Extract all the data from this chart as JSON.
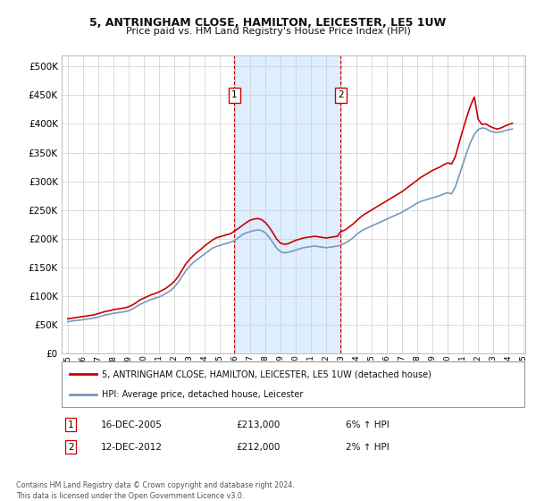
{
  "title_line1": "5, ANTRINGHAM CLOSE, HAMILTON, LEICESTER, LE5 1UW",
  "title_line2": "Price paid vs. HM Land Registry's House Price Index (HPI)",
  "background_color": "#ffffff",
  "plot_bg_color": "#ffffff",
  "grid_color": "#cccccc",
  "red_line_color": "#cc0000",
  "blue_line_color": "#7799bb",
  "highlight_bg_color": "#ddeeff",
  "sale1_date_num": 2005.96,
  "sale2_date_num": 2012.95,
  "sale1_price": 213000,
  "sale2_price": 212000,
  "legend_entry1": "5, ANTRINGHAM CLOSE, HAMILTON, LEICESTER, LE5 1UW (detached house)",
  "legend_entry2": "HPI: Average price, detached house, Leicester",
  "table_row1": [
    "1",
    "16-DEC-2005",
    "£213,000",
    "6% ↑ HPI"
  ],
  "table_row2": [
    "2",
    "12-DEC-2012",
    "£212,000",
    "2% ↑ HPI"
  ],
  "footnote": "Contains HM Land Registry data © Crown copyright and database right 2024.\nThis data is licensed under the Open Government Licence v3.0.",
  "ylim_min": 0,
  "ylim_max": 520000,
  "yticks": [
    0,
    50000,
    100000,
    150000,
    200000,
    250000,
    300000,
    350000,
    400000,
    450000,
    500000
  ],
  "ytick_labels": [
    "£0",
    "£50K",
    "£100K",
    "£150K",
    "£200K",
    "£250K",
    "£300K",
    "£350K",
    "£400K",
    "£450K",
    "£500K"
  ],
  "hpi_dates": [
    1995.0,
    1995.25,
    1995.5,
    1995.75,
    1996.0,
    1996.25,
    1996.5,
    1996.75,
    1997.0,
    1997.25,
    1997.5,
    1997.75,
    1998.0,
    1998.25,
    1998.5,
    1998.75,
    1999.0,
    1999.25,
    1999.5,
    1999.75,
    2000.0,
    2000.25,
    2000.5,
    2000.75,
    2001.0,
    2001.25,
    2001.5,
    2001.75,
    2002.0,
    2002.25,
    2002.5,
    2002.75,
    2003.0,
    2003.25,
    2003.5,
    2003.75,
    2004.0,
    2004.25,
    2004.5,
    2004.75,
    2005.0,
    2005.25,
    2005.5,
    2005.75,
    2006.0,
    2006.25,
    2006.5,
    2006.75,
    2007.0,
    2007.25,
    2007.5,
    2007.75,
    2008.0,
    2008.25,
    2008.5,
    2008.75,
    2009.0,
    2009.25,
    2009.5,
    2009.75,
    2010.0,
    2010.25,
    2010.5,
    2010.75,
    2011.0,
    2011.25,
    2011.5,
    2011.75,
    2012.0,
    2012.25,
    2012.5,
    2012.75,
    2013.0,
    2013.25,
    2013.5,
    2013.75,
    2014.0,
    2014.25,
    2014.5,
    2014.75,
    2015.0,
    2015.25,
    2015.5,
    2015.75,
    2016.0,
    2016.25,
    2016.5,
    2016.75,
    2017.0,
    2017.25,
    2017.5,
    2017.75,
    2018.0,
    2018.25,
    2018.5,
    2018.75,
    2019.0,
    2019.25,
    2019.5,
    2019.75,
    2020.0,
    2020.25,
    2020.5,
    2020.75,
    2021.0,
    2021.25,
    2021.5,
    2021.75,
    2022.0,
    2022.25,
    2022.5,
    2022.75,
    2023.0,
    2023.25,
    2023.5,
    2023.75,
    2024.0,
    2024.25
  ],
  "hpi_values": [
    55000,
    56000,
    57000,
    57500,
    58500,
    59500,
    60500,
    61500,
    63000,
    65000,
    67000,
    68000,
    69500,
    70500,
    71500,
    72500,
    74000,
    77000,
    81000,
    85000,
    88000,
    91000,
    94000,
    96000,
    98000,
    101000,
    105000,
    109000,
    115000,
    123000,
    133000,
    143000,
    151000,
    158000,
    163000,
    168000,
    173000,
    178000,
    183000,
    186000,
    188000,
    190000,
    192000,
    194000,
    197000,
    202000,
    207000,
    210000,
    212000,
    214000,
    215000,
    214000,
    210000,
    202000,
    193000,
    183000,
    177000,
    175000,
    176000,
    178000,
    180000,
    182000,
    184000,
    185000,
    186000,
    187000,
    186000,
    185000,
    184000,
    185000,
    186000,
    187000,
    189000,
    192000,
    196000,
    201000,
    207000,
    212000,
    216000,
    219000,
    222000,
    225000,
    228000,
    231000,
    234000,
    237000,
    240000,
    243000,
    246000,
    250000,
    254000,
    258000,
    262000,
    265000,
    267000,
    269000,
    271000,
    273000,
    275000,
    278000,
    280000,
    278000,
    290000,
    310000,
    330000,
    350000,
    368000,
    382000,
    390000,
    393000,
    392000,
    388000,
    386000,
    385000,
    386000,
    388000,
    390000,
    391000
  ],
  "red_dates": [
    1995.0,
    1995.25,
    1995.5,
    1995.75,
    1996.0,
    1996.25,
    1996.5,
    1996.75,
    1997.0,
    1997.25,
    1997.5,
    1997.75,
    1998.0,
    1998.25,
    1998.5,
    1998.75,
    1999.0,
    1999.25,
    1999.5,
    1999.75,
    2000.0,
    2000.25,
    2000.5,
    2000.75,
    2001.0,
    2001.25,
    2001.5,
    2001.75,
    2002.0,
    2002.25,
    2002.5,
    2002.75,
    2003.0,
    2003.25,
    2003.5,
    2003.75,
    2004.0,
    2004.25,
    2004.5,
    2004.75,
    2005.0,
    2005.25,
    2005.5,
    2005.75,
    2005.96,
    2005.96,
    2006.25,
    2006.5,
    2006.75,
    2007.0,
    2007.25,
    2007.5,
    2007.75,
    2008.0,
    2008.25,
    2008.5,
    2008.75,
    2009.0,
    2009.25,
    2009.5,
    2009.75,
    2010.0,
    2010.25,
    2010.5,
    2010.75,
    2011.0,
    2011.25,
    2011.5,
    2011.75,
    2012.0,
    2012.25,
    2012.5,
    2012.75,
    2012.95,
    2012.95,
    2013.25,
    2013.5,
    2013.75,
    2014.0,
    2014.25,
    2014.5,
    2014.75,
    2015.0,
    2015.25,
    2015.5,
    2015.75,
    2016.0,
    2016.25,
    2016.5,
    2016.75,
    2017.0,
    2017.25,
    2017.5,
    2017.75,
    2018.0,
    2018.25,
    2018.5,
    2018.75,
    2019.0,
    2019.25,
    2019.5,
    2019.75,
    2020.0,
    2020.25,
    2020.5,
    2020.75,
    2021.0,
    2021.25,
    2021.5,
    2021.75,
    2022.0,
    2022.25,
    2022.5,
    2022.75,
    2023.0,
    2023.25,
    2023.5,
    2023.75,
    2024.0,
    2024.25
  ],
  "red_values": [
    60000,
    61000,
    62000,
    63000,
    64000,
    65000,
    66000,
    67000,
    69000,
    71000,
    73000,
    74000,
    76000,
    77000,
    78000,
    79000,
    81000,
    84000,
    88000,
    93000,
    96000,
    99000,
    102000,
    104000,
    107000,
    110000,
    114000,
    119000,
    125000,
    133000,
    144000,
    155000,
    163000,
    170000,
    176000,
    181000,
    187000,
    192000,
    197000,
    201000,
    203000,
    205000,
    207000,
    209000,
    213000,
    213000,
    218000,
    223000,
    228000,
    232000,
    234000,
    235000,
    233000,
    228000,
    220000,
    210000,
    199000,
    192000,
    190000,
    191000,
    194000,
    197000,
    199000,
    201000,
    202000,
    203000,
    204000,
    203000,
    202000,
    201000,
    202000,
    203000,
    204000,
    212000,
    212000,
    215000,
    220000,
    225000,
    231000,
    237000,
    242000,
    246000,
    250000,
    254000,
    258000,
    262000,
    266000,
    270000,
    274000,
    278000,
    282000,
    287000,
    292000,
    297000,
    302000,
    307000,
    311000,
    315000,
    319000,
    322000,
    325000,
    329000,
    332000,
    330000,
    343000,
    367000,
    390000,
    412000,
    432000,
    447000,
    408000,
    399000,
    400000,
    396000,
    393000,
    391000,
    393000,
    396000,
    399000,
    401000
  ]
}
